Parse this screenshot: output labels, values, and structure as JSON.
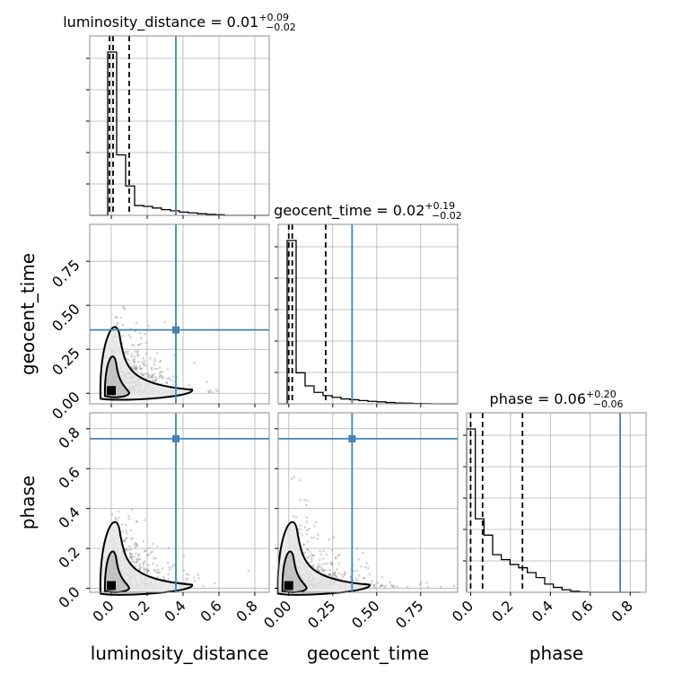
{
  "chart_data": {
    "type": "corner",
    "parameters": [
      "luminosity_distance",
      "geocent_time",
      "phase"
    ],
    "titles": [
      {
        "base": "luminosity_distance = 0.01",
        "plus": "+0.09",
        "minus": "−0.02"
      },
      {
        "base": "geocent_time = 0.02",
        "plus": "+0.19",
        "minus": "−0.02"
      },
      {
        "base": "phase = 0.06",
        "plus": "+0.20",
        "minus": "−0.06"
      }
    ],
    "truth": {
      "luminosity_distance": 0.36,
      "geocent_time": 0.36,
      "phase": 0.75
    },
    "quantiles": {
      "luminosity_distance": [
        -0.01,
        0.01,
        0.1
      ],
      "geocent_time": [
        0.0,
        0.02,
        0.21
      ],
      "phase": [
        0.0,
        0.06,
        0.26
      ]
    },
    "ranges": {
      "luminosity_distance": [
        -0.12,
        0.88
      ],
      "geocent_time": [
        -0.06,
        0.96
      ],
      "phase": [
        -0.02,
        0.88
      ]
    },
    "ticks": {
      "luminosity_distance": {
        "values": [
          0.0,
          0.2,
          0.4,
          0.6,
          0.8
        ],
        "labels": [
          "0.0",
          "0.2",
          "0.4",
          "0.6",
          "0.8"
        ]
      },
      "geocent_time": {
        "values": [
          0.0,
          0.25,
          0.5,
          0.75
        ],
        "labels": [
          "0.00",
          "0.25",
          "0.50",
          "0.75"
        ]
      },
      "phase_x": {
        "values": [
          0.0,
          0.2,
          0.4,
          0.6,
          0.8
        ],
        "labels": [
          "0.0",
          "0.2",
          "0.4",
          "0.6",
          "0.8"
        ]
      },
      "phase_y": {
        "values": [
          0.0,
          0.2,
          0.4,
          0.6,
          0.8
        ],
        "labels": [
          "0.0",
          "0.2",
          "0.4",
          "0.6",
          "0.8"
        ]
      }
    },
    "histograms": {
      "luminosity_distance": {
        "bin_edges": [
          -0.12,
          -0.07,
          -0.02,
          0.03,
          0.08,
          0.13,
          0.18,
          0.23,
          0.28,
          0.33,
          0.38,
          0.43,
          0.48,
          0.53,
          0.58,
          0.63,
          0.68,
          0.73,
          0.78,
          0.83,
          0.88
        ],
        "counts": [
          0,
          0,
          1.0,
          0.37,
          0.18,
          0.06,
          0.055,
          0.045,
          0.035,
          0.028,
          0.02,
          0.015,
          0.01,
          0.006,
          0.004,
          0,
          0,
          0,
          0,
          0
        ]
      },
      "geocent_time": {
        "bin_edges": [
          -0.06,
          -0.009,
          0.042,
          0.093,
          0.144,
          0.195,
          0.246,
          0.297,
          0.348,
          0.399,
          0.45,
          0.501,
          0.552,
          0.603,
          0.654,
          0.705,
          0.756,
          0.807,
          0.858,
          0.909,
          0.96
        ],
        "counts": [
          0,
          1.0,
          0.19,
          0.11,
          0.07,
          0.05,
          0.04,
          0.03,
          0.025,
          0.02,
          0.015,
          0.012,
          0.008,
          0.005,
          0.004,
          0.002,
          0.001,
          0,
          0,
          0
        ]
      },
      "phase": {
        "bin_edges": [
          -0.02,
          0.0235,
          0.067,
          0.1105,
          0.154,
          0.1975,
          0.241,
          0.2845,
          0.328,
          0.3715,
          0.415,
          0.4585,
          0.502,
          0.5455,
          0.589,
          0.6325,
          0.676,
          0.7195,
          0.763,
          0.8065,
          0.85
        ],
        "counts": [
          1.0,
          0.45,
          0.35,
          0.23,
          0.2,
          0.17,
          0.15,
          0.12,
          0.09,
          0.05,
          0.03,
          0.015,
          0.006,
          0.002,
          0,
          0,
          0,
          0,
          0,
          0
        ]
      }
    }
  }
}
